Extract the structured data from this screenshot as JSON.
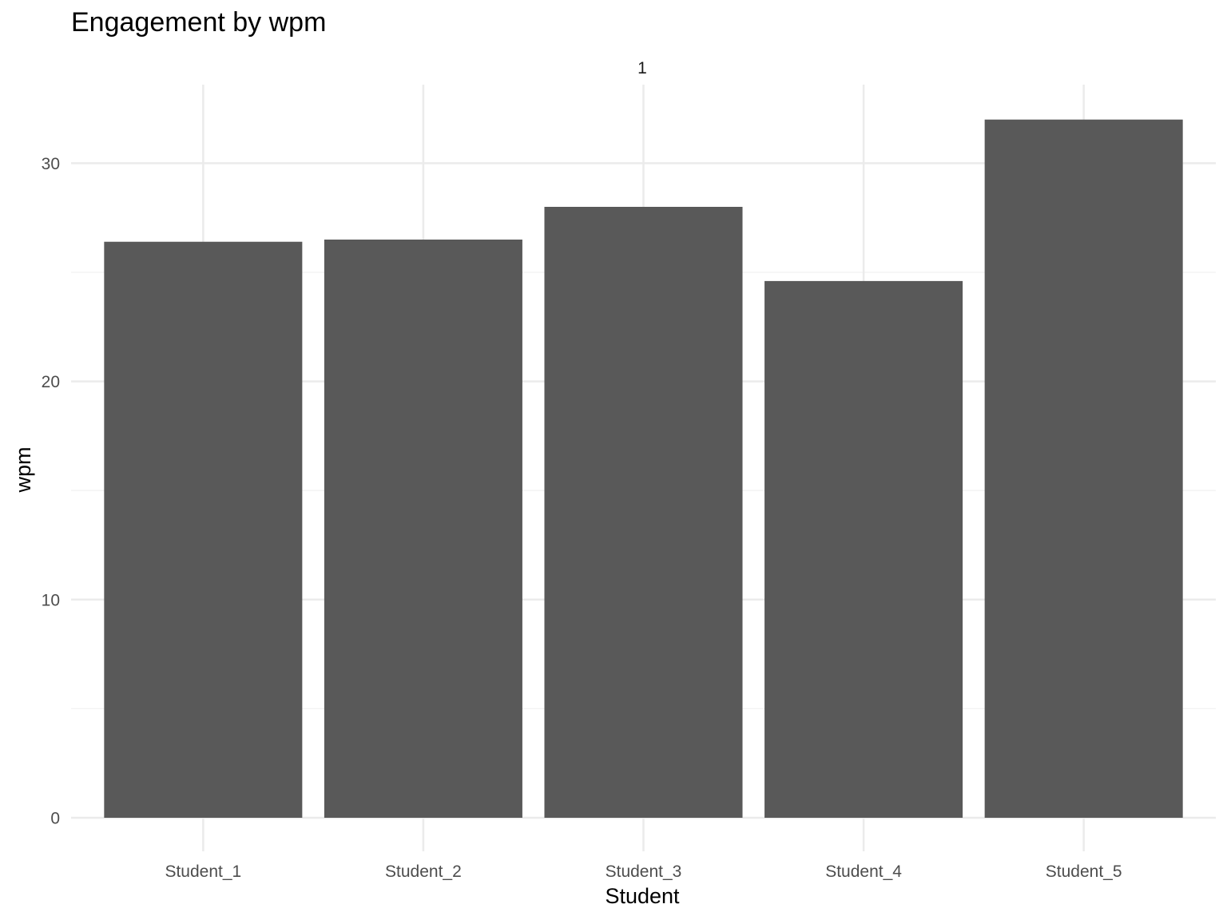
{
  "chart_data": {
    "type": "bar",
    "title": "Engagement by wpm",
    "facet_label": "1",
    "xlabel": "Student",
    "ylabel": "wpm",
    "categories": [
      "Student_1",
      "Student_2",
      "Student_3",
      "Student_4",
      "Student_5"
    ],
    "values": [
      26.4,
      26.5,
      28.0,
      24.6,
      32.0
    ],
    "ylim": [
      0,
      33.6
    ],
    "yticks": [
      0,
      10,
      20,
      30
    ],
    "ytick_labels": [
      "0",
      "10",
      "20",
      "30"
    ],
    "grid": true,
    "legend": "none",
    "colors": {
      "bar": "#595959",
      "grid_major": "#ebebeb",
      "grid_minor": "#f2f2f2",
      "background": "#ffffff"
    }
  }
}
